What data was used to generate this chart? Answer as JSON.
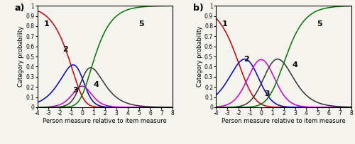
{
  "xlim": [
    -4,
    8
  ],
  "ylim": [
    0,
    1.0
  ],
  "yticks": [
    0,
    0.1,
    0.2,
    0.3,
    0.4,
    0.5,
    0.6,
    0.7,
    0.8,
    0.9,
    1
  ],
  "ytick_labels": [
    "0",
    "0.1",
    "0.2",
    "0.3",
    "0.4",
    "0.5",
    "0.6",
    "0.7",
    "0.8",
    "0.9",
    "1"
  ],
  "xticks": [
    -4,
    -3,
    -2,
    -1,
    0,
    1,
    2,
    3,
    4,
    5,
    6,
    7,
    8
  ],
  "xtick_labels": [
    "-4",
    "-3",
    "-2",
    "-1",
    "0",
    "1",
    "2",
    "3",
    "4",
    "5",
    "6",
    "7",
    "8"
  ],
  "xlabel": "Person measure relative to item measure",
  "ylabel": "Category probability",
  "colors": [
    "#cc0000",
    "#0000cc",
    "#cc00cc",
    "#333333",
    "#007700"
  ],
  "labels": [
    "1",
    "2",
    "3",
    "4",
    "5"
  ],
  "panel_labels": [
    "a)",
    "b)"
  ],
  "thresholds_a": [
    -1.2,
    -0.8,
    -0.4,
    0.4
  ],
  "thresholds_b": [
    -2.0,
    -0.7,
    0.7,
    2.0
  ],
  "figsize": [
    5.0,
    2.04
  ],
  "dpi": 100,
  "bg_color": "#f5f4ef"
}
